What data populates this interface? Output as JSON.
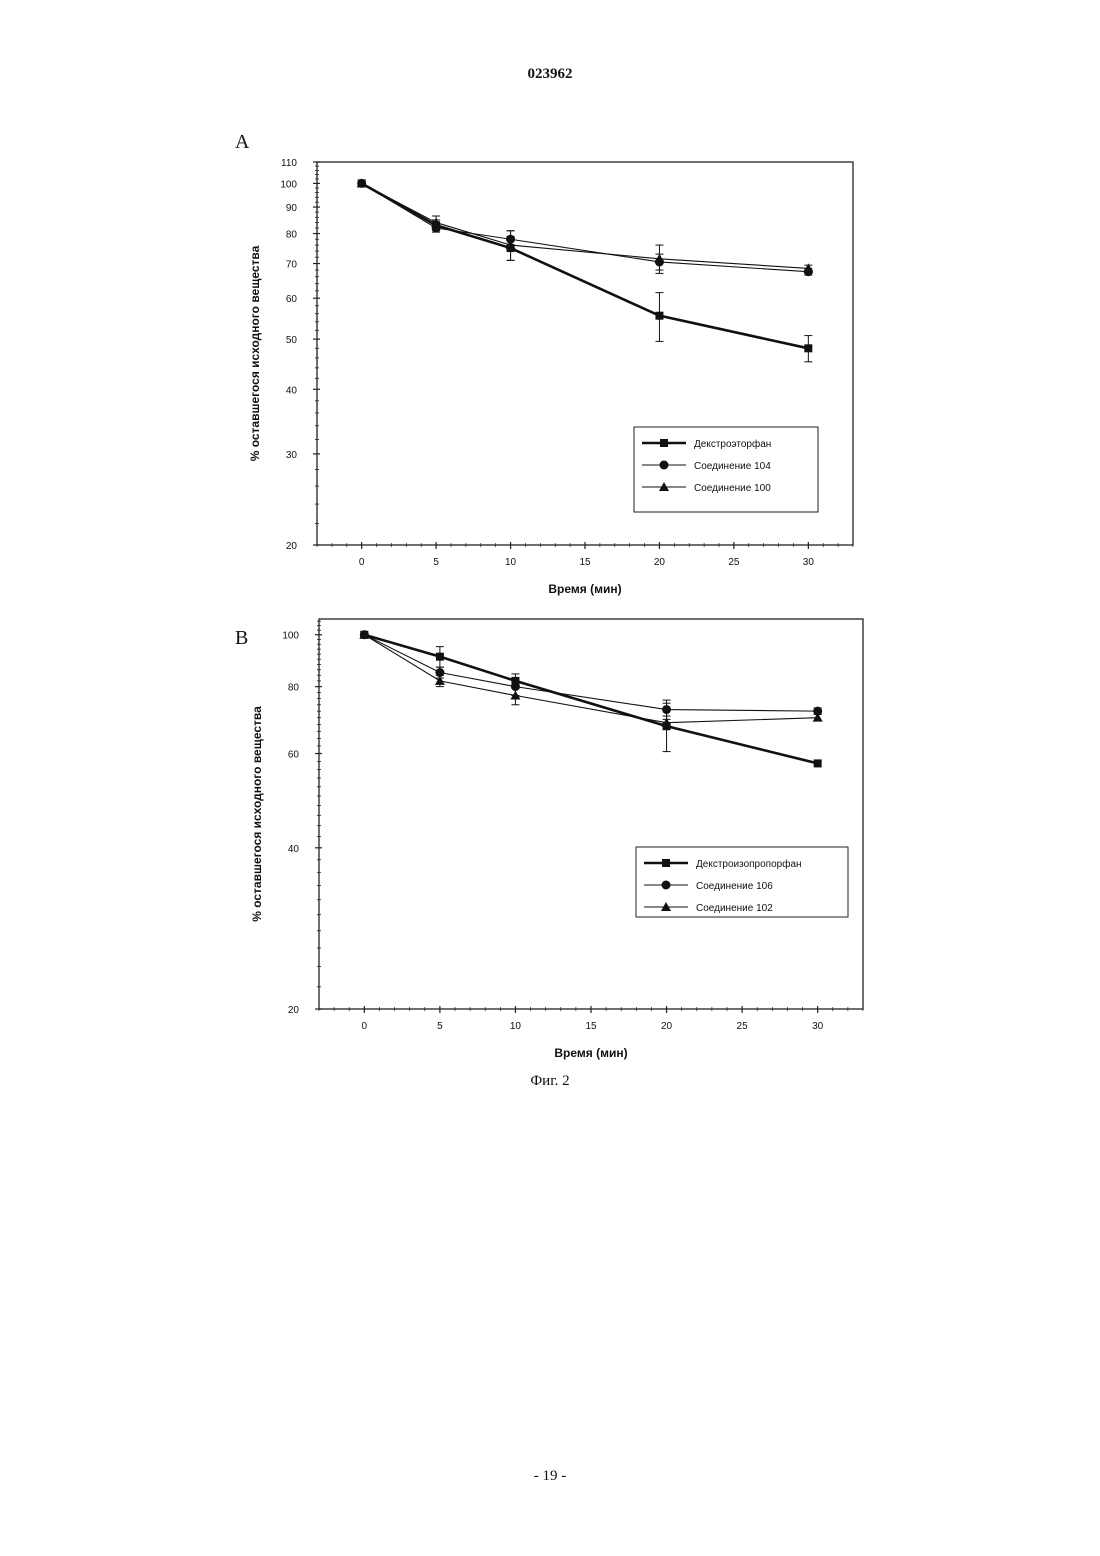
{
  "document": {
    "number": "023962",
    "caption": "Фиг. 2",
    "page": "- 19 -"
  },
  "chart_data": [
    {
      "panel_label": "A",
      "type": "line",
      "xlabel": "Время (мин)",
      "ylabel": "% оставшегося исходного вещества",
      "xlim": [
        -3,
        33
      ],
      "ylim": [
        20,
        110
      ],
      "yscale": "log",
      "xticks": [
        0,
        5,
        10,
        15,
        20,
        25,
        30
      ],
      "yticks": [
        20,
        30,
        40,
        50,
        60,
        70,
        80,
        90,
        100,
        110
      ],
      "legend_position": "bottom-right",
      "grid": false,
      "series": [
        {
          "name": "Декстроэторфан",
          "marker": "square",
          "line_weight": "bold",
          "x": [
            0,
            5,
            10,
            20,
            30
          ],
          "y": [
            100,
            83,
            75,
            55.5,
            48
          ],
          "error": [
            0,
            2,
            4,
            6,
            2.8
          ]
        },
        {
          "name": "Соединение 104",
          "marker": "circle",
          "line_weight": "thin",
          "x": [
            0,
            5,
            10,
            20,
            30
          ],
          "y": [
            100,
            82,
            78,
            70.5,
            67.5
          ],
          "error": [
            0,
            1.5,
            3,
            2.5,
            1
          ]
        },
        {
          "name": "Соединение 100",
          "marker": "triangle",
          "line_weight": "thin",
          "x": [
            0,
            5,
            10,
            20,
            30
          ],
          "y": [
            100,
            84,
            76,
            71.5,
            68.5
          ],
          "error": [
            0,
            2.5,
            5,
            4.5,
            1
          ]
        }
      ]
    },
    {
      "panel_label": "B",
      "type": "line",
      "xlabel": "Время (мин)",
      "ylabel": "% оставшегося исходного вещества",
      "xlim": [
        -3,
        33
      ],
      "ylim": [
        20,
        107
      ],
      "yscale": "log",
      "xticks": [
        0,
        5,
        10,
        15,
        20,
        25,
        30
      ],
      "yticks": [
        20,
        40,
        60,
        80,
        100
      ],
      "legend_position": "bottom-right",
      "grid": false,
      "series": [
        {
          "name": "Декстроизопропорфан",
          "marker": "square",
          "line_weight": "bold",
          "x": [
            0,
            5,
            10,
            20,
            30
          ],
          "y": [
            100,
            91,
            82,
            67.5,
            57.5
          ],
          "error": [
            0,
            4,
            2.5,
            7,
            0
          ]
        },
        {
          "name": "Соединение 106",
          "marker": "circle",
          "line_weight": "thin",
          "x": [
            0,
            5,
            10,
            20,
            30
          ],
          "y": [
            100,
            85,
            80,
            72.5,
            72
          ],
          "error": [
            0,
            2,
            3,
            3,
            1
          ]
        },
        {
          "name": "Соединение 102",
          "marker": "triangle",
          "line_weight": "thin",
          "x": [
            0,
            5,
            10,
            20,
            30
          ],
          "y": [
            100,
            82,
            77,
            68.5,
            70
          ],
          "error": [
            0,
            2,
            3,
            2,
            1
          ]
        }
      ]
    }
  ]
}
